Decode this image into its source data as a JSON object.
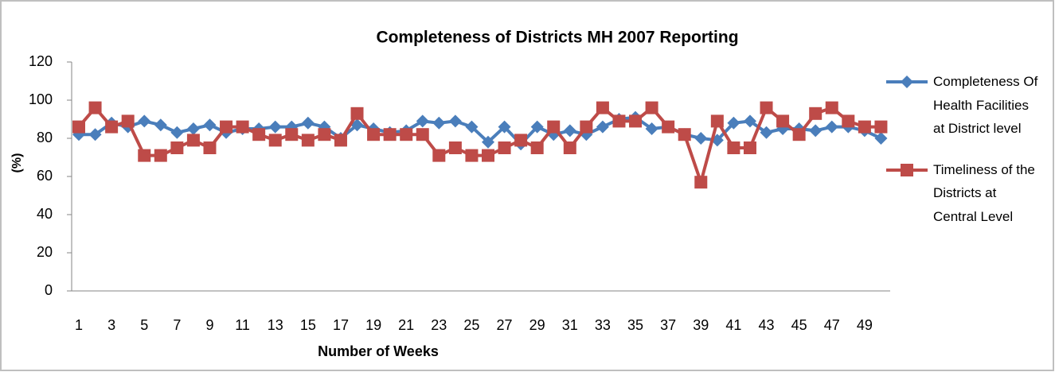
{
  "chart_data": {
    "type": "line",
    "title": "Completeness of Districts MH 2007 Reporting",
    "x_label": "Number of Weeks",
    "y_label": "(%)",
    "categories": [
      1,
      null,
      3,
      null,
      5,
      null,
      7,
      null,
      9,
      null,
      11,
      null,
      13,
      null,
      15,
      null,
      17,
      null,
      19,
      null,
      21,
      null,
      23,
      null,
      25,
      null,
      27,
      null,
      29,
      null,
      31,
      null,
      33,
      null,
      35,
      null,
      37,
      null,
      39,
      null,
      41,
      null,
      43,
      null,
      45,
      null,
      47,
      null,
      49,
      null
    ],
    "series": [
      {
        "name": "Completeness Of Health Facilities at District level",
        "color": "#4a7ebb",
        "marker": "diamond",
        "values": [
          82,
          82,
          88,
          86,
          89,
          87,
          83,
          85,
          87,
          83,
          85,
          85,
          86,
          86,
          88,
          86,
          80,
          87,
          85,
          83,
          84,
          89,
          88,
          89,
          86,
          78,
          86,
          77,
          86,
          82,
          84,
          82,
          86,
          90,
          91,
          85,
          86,
          82,
          80,
          79,
          88,
          89,
          83,
          85,
          85,
          84,
          86,
          86,
          84,
          80
        ]
      },
      {
        "name": "Timeliness of the Districts at Central Level",
        "color": "#be4b48",
        "marker": "square",
        "values": [
          86,
          96,
          86,
          89,
          71,
          71,
          75,
          79,
          75,
          86,
          86,
          82,
          79,
          82,
          79,
          82,
          79,
          93,
          82,
          82,
          82,
          82,
          71,
          75,
          71,
          71,
          75,
          79,
          75,
          86,
          75,
          86,
          96,
          89,
          89,
          96,
          86,
          82,
          57,
          89,
          75,
          75,
          96,
          89,
          82,
          93,
          96,
          89,
          86,
          86
        ]
      }
    ],
    "ylim": [
      0,
      120
    ],
    "yticks": [
      0,
      20,
      40,
      60,
      80,
      100,
      120
    ],
    "grid": false,
    "legend": "right"
  }
}
